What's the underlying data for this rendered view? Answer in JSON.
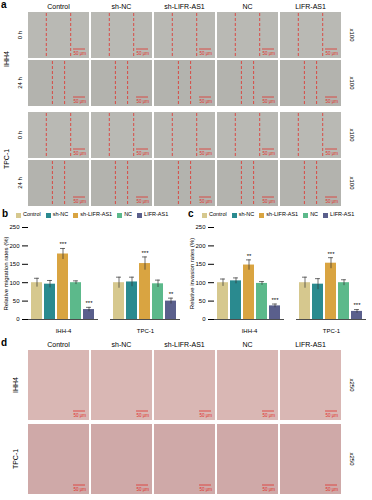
{
  "panel_letters": [
    "a",
    "b",
    "c",
    "d"
  ],
  "wound_healing": {
    "columns": [
      "Control",
      "sh-NC",
      "sh-LIFR-AS1",
      "NC",
      "LIFR-AS1"
    ],
    "cell_lines": [
      "IHH4",
      "TPC-1"
    ],
    "time_points": [
      "0 h",
      "24 h"
    ],
    "magnification": "x100",
    "scale_bar": "50 μm"
  },
  "chart_data": [
    {
      "type": "bar",
      "y_label": "Relative migration rates (%)",
      "categories": [
        "IHH-4",
        "TPC-1"
      ],
      "legend": "top",
      "ylim": [
        0,
        250
      ],
      "yticks": [
        0,
        50,
        100,
        150,
        200,
        250
      ],
      "series": [
        {
          "name": "Control",
          "color": "#d6c88e",
          "values": [
            100,
            100
          ],
          "errors": [
            12,
            15
          ],
          "significance": [
            null,
            null
          ]
        },
        {
          "name": "sh-NC",
          "color": "#2a8a8f",
          "values": [
            96,
            102
          ],
          "errors": [
            10,
            13
          ],
          "significance": [
            null,
            null
          ]
        },
        {
          "name": "sh-LIFR-AS1",
          "color": "#d9a441",
          "values": [
            178,
            152
          ],
          "errors": [
            15,
            18
          ],
          "significance": [
            "***",
            "***"
          ]
        },
        {
          "name": "NC",
          "color": "#5cb98b",
          "values": [
            100,
            97
          ],
          "errors": [
            5,
            10
          ],
          "significance": [
            null,
            null
          ]
        },
        {
          "name": "LIFR-AS1",
          "color": "#5a5f8c",
          "values": [
            27,
            50
          ],
          "errors": [
            6,
            8
          ],
          "significance": [
            "***",
            "**"
          ]
        }
      ]
    },
    {
      "type": "bar",
      "y_label": "Relative invasion rates (%)",
      "categories": [
        "IHH-4",
        "TPC-1"
      ],
      "legend": "top",
      "ylim": [
        0,
        250
      ],
      "yticks": [
        0,
        50,
        100,
        150,
        200,
        250
      ],
      "series": [
        {
          "name": "Control",
          "color": "#d6c88e",
          "values": [
            100,
            100
          ],
          "errors": [
            10,
            15
          ],
          "significance": [
            null,
            null
          ]
        },
        {
          "name": "sh-NC",
          "color": "#2a8a8f",
          "values": [
            105,
            96
          ],
          "errors": [
            8,
            15
          ],
          "significance": [
            null,
            null
          ]
        },
        {
          "name": "sh-LIFR-AS1",
          "color": "#d9a441",
          "values": [
            148,
            153
          ],
          "errors": [
            14,
            15
          ],
          "significance": [
            "**",
            "***"
          ]
        },
        {
          "name": "NC",
          "color": "#5cb98b",
          "values": [
            98,
            100
          ],
          "errors": [
            5,
            8
          ],
          "significance": [
            null,
            null
          ]
        },
        {
          "name": "LIFR-AS1",
          "color": "#5a5f8c",
          "values": [
            37,
            22
          ],
          "errors": [
            5,
            5
          ],
          "significance": [
            "***",
            "***"
          ]
        }
      ]
    }
  ],
  "transwell": {
    "columns": [
      "Control",
      "sh-NC",
      "sh-LIFR-AS1",
      "NC",
      "LIFR-AS1"
    ],
    "cell_lines": [
      "IHH4",
      "TPC-1"
    ],
    "magnification": "x250",
    "scale_bar": "50 μm"
  }
}
